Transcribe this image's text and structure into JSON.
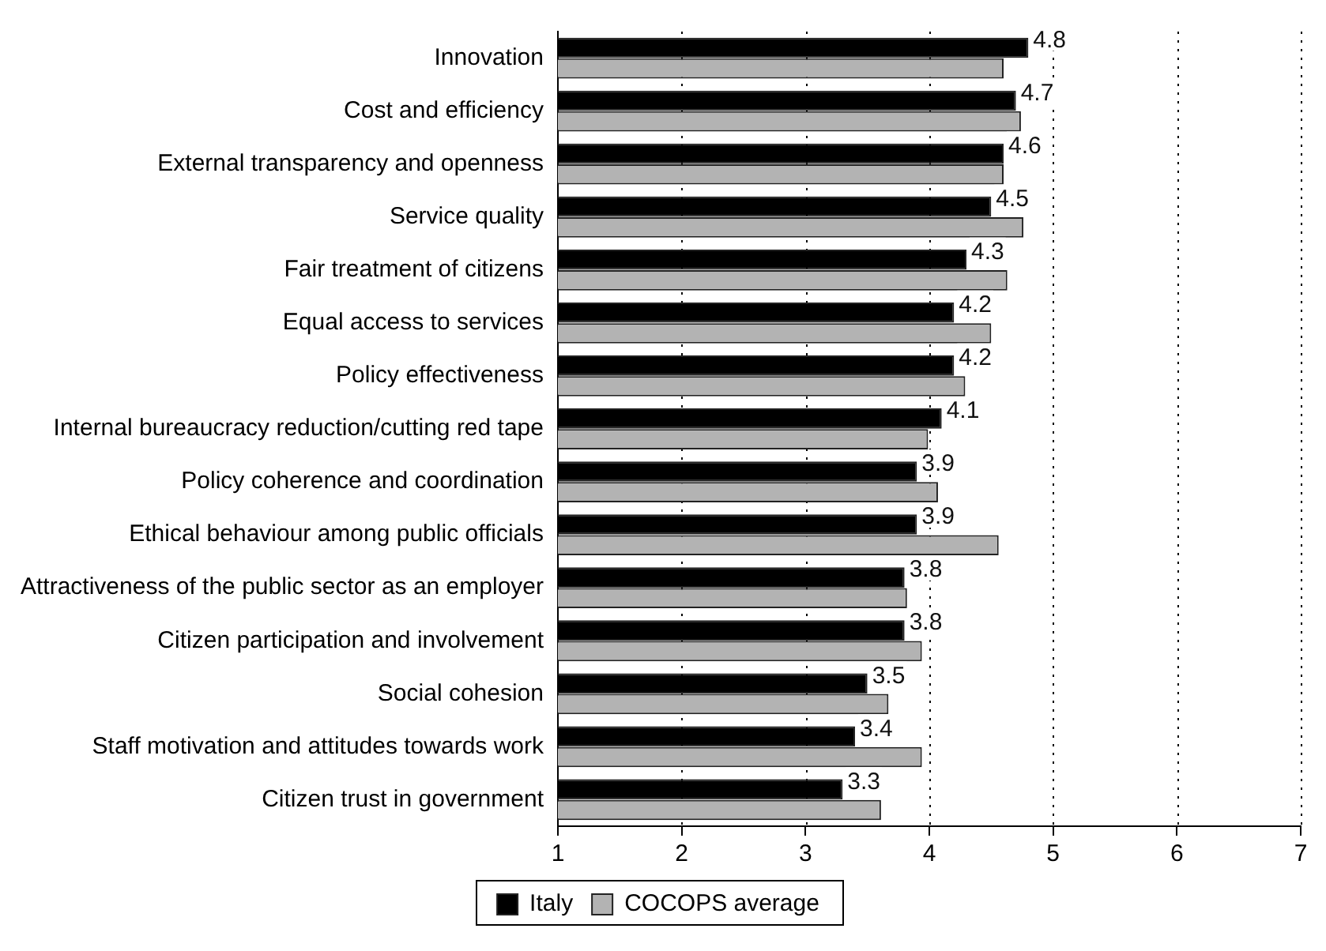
{
  "chart_data": {
    "type": "bar",
    "orientation": "horizontal",
    "categories": [
      "Innovation",
      "Cost and efficiency",
      "External transparency and openness",
      "Service quality",
      "Fair treatment of citizens",
      "Equal access to services",
      "Policy effectiveness",
      "Internal bureaucracy reduction/cutting red tape",
      "Policy coherence and coordination",
      "Ethical behaviour among public officials",
      "Attractiveness of the public sector as an employer",
      "Citizen participation and involvement",
      "Social cohesion",
      "Staff motivation and attitudes towards work",
      "Citizen trust in government"
    ],
    "series": [
      {
        "name": "Italy",
        "color": "#000000",
        "values": [
          4.8,
          4.7,
          4.6,
          4.5,
          4.3,
          4.2,
          4.2,
          4.1,
          3.9,
          3.9,
          3.8,
          3.8,
          3.5,
          3.4,
          3.3
        ],
        "data_labels": true
      },
      {
        "name": "COCOPS average",
        "color": "#b3b3b3",
        "values": [
          4.6,
          4.74,
          4.6,
          4.76,
          4.63,
          4.5,
          4.29,
          3.99,
          4.07,
          4.56,
          3.82,
          3.94,
          3.67,
          3.94,
          3.61
        ]
      }
    ],
    "xlim": [
      1,
      7
    ],
    "xticks": [
      1,
      2,
      3,
      4,
      5,
      6,
      7
    ],
    "grid": "x",
    "legend": "bottom"
  }
}
